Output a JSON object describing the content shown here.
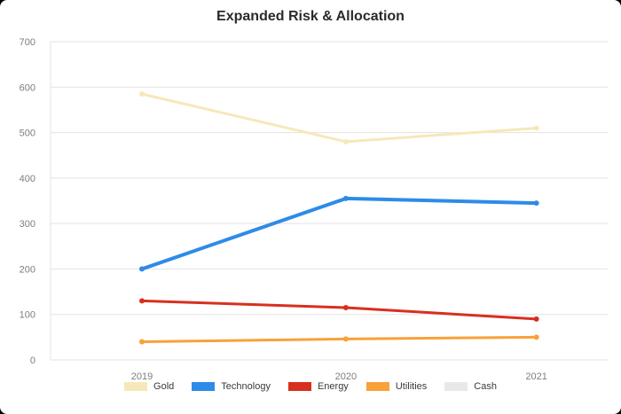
{
  "chart_data": {
    "type": "line",
    "title": "Expanded Risk & Allocation",
    "categories": [
      "2019",
      "2020",
      "2021"
    ],
    "y_ticks": [
      0,
      100,
      200,
      300,
      400,
      500,
      600,
      700
    ],
    "ylim": [
      0,
      700
    ],
    "grid": true,
    "legend_position": "bottom",
    "axis_colors": {
      "gridline": "#e3e3e3",
      "tick_text": "#7d7d7d"
    },
    "series": [
      {
        "name": "Gold",
        "color": "#f6e8b9",
        "width": 3,
        "values": [
          585,
          480,
          510
        ]
      },
      {
        "name": "Technology",
        "color": "#2e8be8",
        "width": 4,
        "values": [
          200,
          355,
          345
        ]
      },
      {
        "name": "Energy",
        "color": "#d7301f",
        "width": 3,
        "values": [
          130,
          115,
          90
        ]
      },
      {
        "name": "Utilities",
        "color": "#f9a13a",
        "width": 3,
        "values": [
          40,
          46,
          50
        ]
      },
      {
        "name": "Cash",
        "color": "#e8e8e8",
        "width": 3,
        "values": []
      }
    ]
  }
}
